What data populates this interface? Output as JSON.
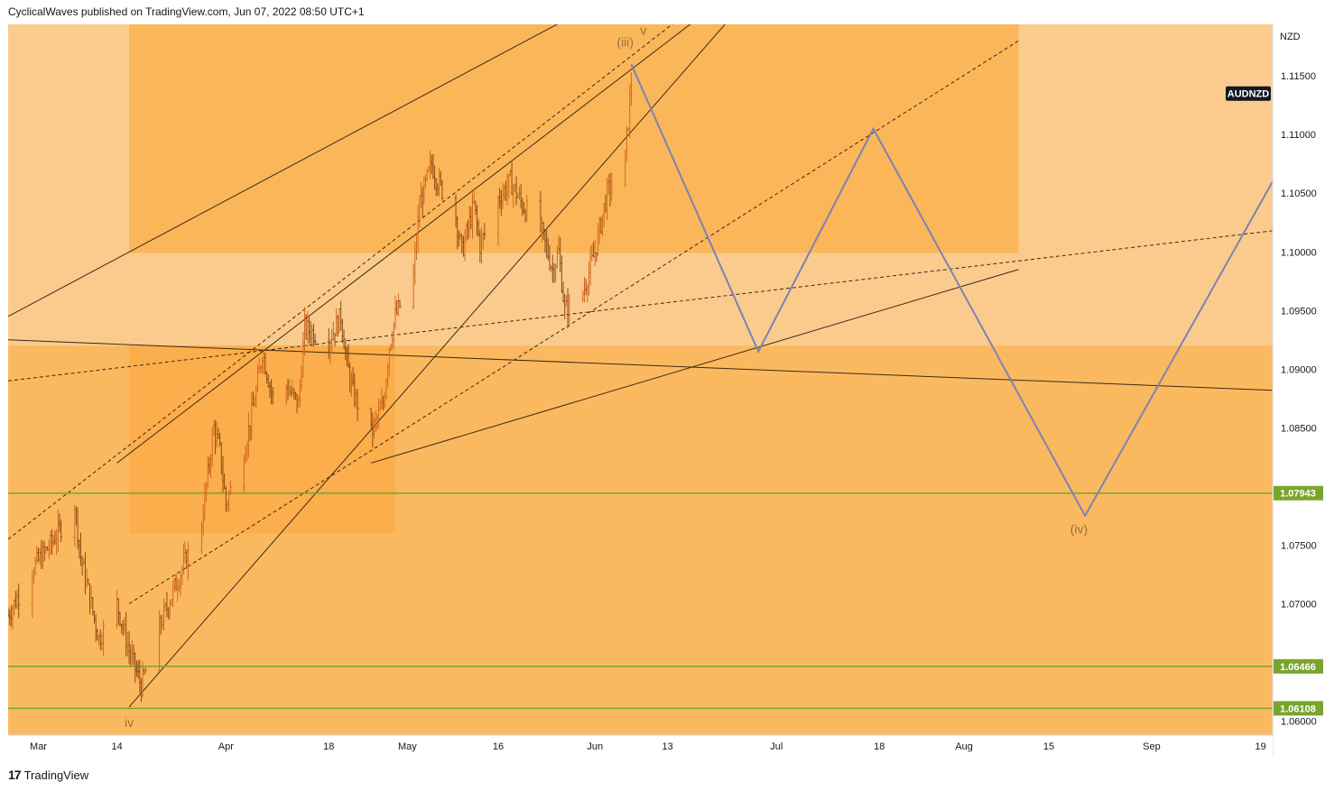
{
  "header": {
    "publisher_line": "CyclicalWaves published on TradingView.com, Jun 07, 2022 08:50 UTC+1"
  },
  "footer": {
    "logo_mark": "17",
    "brand": "TradingView"
  },
  "chart_data": {
    "type": "candlestick",
    "symbol": "AUDNZD",
    "currency": "NZD",
    "y_axis": {
      "ticks": [
        1.06,
        1.065,
        1.07,
        1.075,
        1.08,
        1.085,
        1.09,
        1.095,
        1.1,
        1.105,
        1.11,
        1.115
      ],
      "tick_labels": [
        "1.06000",
        "",
        "1.07000",
        "1.07500",
        "",
        "1.08500",
        "1.09000",
        "1.09500",
        "1.10000",
        "1.10500",
        "1.11000",
        "1.11500"
      ],
      "range": [
        1.0588,
        1.1194
      ]
    },
    "x_axis": {
      "range": [
        "2022-02-24",
        "2022-09-21"
      ],
      "ticks": [
        {
          "date": "2022-03-01",
          "label": "Mar"
        },
        {
          "date": "2022-03-14",
          "label": "14"
        },
        {
          "date": "2022-04-01",
          "label": "Apr"
        },
        {
          "date": "2022-04-18",
          "label": "18"
        },
        {
          "date": "2022-05-01",
          "label": "May"
        },
        {
          "date": "2022-05-16",
          "label": "16"
        },
        {
          "date": "2022-06-01",
          "label": "Jun"
        },
        {
          "date": "2022-06-13",
          "label": "13"
        },
        {
          "date": "2022-07-01",
          "label": "Jul"
        },
        {
          "date": "2022-07-18",
          "label": "18"
        },
        {
          "date": "2022-08-01",
          "label": "Aug"
        },
        {
          "date": "2022-08-15",
          "label": "15"
        },
        {
          "date": "2022-09-01",
          "label": "Sep"
        },
        {
          "date": "2022-09-19",
          "label": "19"
        }
      ]
    },
    "price_anchors": [
      [
        "2022-02-24",
        1.069
      ],
      [
        "2022-02-28",
        1.073
      ],
      [
        "2022-03-03",
        1.075
      ],
      [
        "2022-03-07",
        1.0785
      ],
      [
        "2022-03-08",
        1.074
      ],
      [
        "2022-03-11",
        1.067
      ],
      [
        "2022-03-14",
        1.07
      ],
      [
        "2022-03-16",
        1.066
      ],
      [
        "2022-03-18",
        1.063
      ],
      [
        "2022-03-21",
        1.068
      ],
      [
        "2022-03-24",
        1.072
      ],
      [
        "2022-03-28",
        1.077
      ],
      [
        "2022-03-30",
        1.085
      ],
      [
        "2022-03-31",
        1.083
      ],
      [
        "2022-04-01",
        1.0785
      ],
      [
        "2022-04-04",
        1.083
      ],
      [
        "2022-04-06",
        1.088
      ],
      [
        "2022-04-07",
        1.0915
      ],
      [
        "2022-04-09",
        1.087
      ],
      [
        "2022-04-11",
        1.0885
      ],
      [
        "2022-04-13",
        1.087
      ],
      [
        "2022-04-14",
        1.0935
      ],
      [
        "2022-04-18",
        1.0925
      ],
      [
        "2022-04-20",
        1.0945
      ],
      [
        "2022-04-21",
        1.0905
      ],
      [
        "2022-04-22",
        1.088
      ],
      [
        "2022-04-25",
        1.0845
      ],
      [
        "2022-04-27",
        1.087
      ],
      [
        "2022-04-28",
        1.092
      ],
      [
        "2022-04-29",
        1.0945
      ],
      [
        "2022-05-02",
        1.098
      ],
      [
        "2022-05-03",
        1.104
      ],
      [
        "2022-05-05",
        1.1075
      ],
      [
        "2022-05-06",
        1.106
      ],
      [
        "2022-05-09",
        1.103
      ],
      [
        "2022-05-10",
        1.1
      ],
      [
        "2022-05-12",
        1.104
      ],
      [
        "2022-05-13",
        1.1005
      ],
      [
        "2022-05-16",
        1.1045
      ],
      [
        "2022-05-18",
        1.106
      ],
      [
        "2022-05-20",
        1.104
      ],
      [
        "2022-05-23",
        1.102
      ],
      [
        "2022-05-25",
        1.0985
      ],
      [
        "2022-05-26",
        1.1
      ],
      [
        "2022-05-27",
        1.095
      ],
      [
        "2022-05-30",
        1.0965
      ],
      [
        "2022-06-01",
        1.1
      ],
      [
        "2022-06-03",
        1.105
      ],
      [
        "2022-06-06",
        1.108
      ],
      [
        "2022-06-07",
        1.1145
      ]
    ],
    "projection_path": [
      [
        "2022-06-07",
        1.116
      ],
      [
        "2022-06-28",
        1.0915
      ],
      [
        "2022-07-17",
        1.1105
      ],
      [
        "2022-08-21",
        1.0775
      ],
      [
        "2022-09-21",
        1.106
      ]
    ],
    "horizontal_levels": [
      {
        "price": 1.07943,
        "label": "1.07943"
      },
      {
        "price": 1.06466,
        "label": "1.06466"
      },
      {
        "price": 1.06108,
        "label": "1.06108"
      }
    ],
    "wave_labels": [
      {
        "text": "(iii)",
        "date": "2022-06-06",
        "price": 1.1175
      },
      {
        "text": "v",
        "date": "2022-06-09",
        "price": 1.1185
      },
      {
        "text": "iv",
        "date": "2022-03-16",
        "price": 1.0595
      },
      {
        "text": "(iv)",
        "date": "2022-08-20",
        "price": 1.076
      }
    ],
    "trend_lines": [
      {
        "style": "solid",
        "from": [
          "2022-02-24",
          1.0945
        ],
        "to": [
          "2022-05-29",
          1.1203
        ]
      },
      {
        "style": "solid",
        "from": [
          "2022-02-24",
          1.0925
        ],
        "to": [
          "2022-09-21",
          1.0882
        ]
      },
      {
        "style": "solid",
        "from": [
          "2022-03-14",
          1.082
        ],
        "to": [
          "2022-06-19",
          1.1203
        ]
      },
      {
        "style": "solid",
        "from": [
          "2022-04-25",
          1.082
        ],
        "to": [
          "2022-08-10",
          1.0985
        ]
      },
      {
        "style": "solid",
        "from": [
          "2022-03-16",
          1.0612
        ],
        "to": [
          "2022-06-24",
          1.1203
        ]
      },
      {
        "style": "dashed",
        "from": [
          "2022-02-24",
          1.0755
        ],
        "to": [
          "2022-06-16",
          1.1203
        ]
      },
      {
        "style": "dashed",
        "from": [
          "2022-03-16",
          1.07
        ],
        "to": [
          "2022-08-10",
          1.118
        ]
      },
      {
        "style": "dashed",
        "from": [
          "2022-02-24",
          1.089
        ],
        "to": [
          "2022-09-21",
          1.1018
        ]
      }
    ],
    "shaded_zones": [
      {
        "from": "2022-02-24",
        "to": "2022-09-21",
        "price_range": [
          1.0588,
          1.1194
        ],
        "color": "#fbb95f"
      },
      {
        "from": "2022-02-24",
        "to": "2022-09-21",
        "price_range": [
          1.092,
          1.1194
        ],
        "color": "#fbcb8e"
      },
      {
        "from": "2022-03-16",
        "to": "2022-08-10",
        "price_range": [
          1.0999,
          1.1194
        ],
        "color": "#fbb65a"
      },
      {
        "from": "2022-03-16",
        "to": "2022-04-29",
        "price_range": [
          1.076,
          1.092
        ],
        "color": "#fbae4b"
      }
    ],
    "colors": {
      "candle": "#8b4a12",
      "candle_up": "#d2691e",
      "projection": "#7b83b4",
      "level": "#7aa52c",
      "level_label_bg": "#7aa52c",
      "symbol_badge_bg": "#131722",
      "wave_label": "#9c6e3a"
    }
  }
}
